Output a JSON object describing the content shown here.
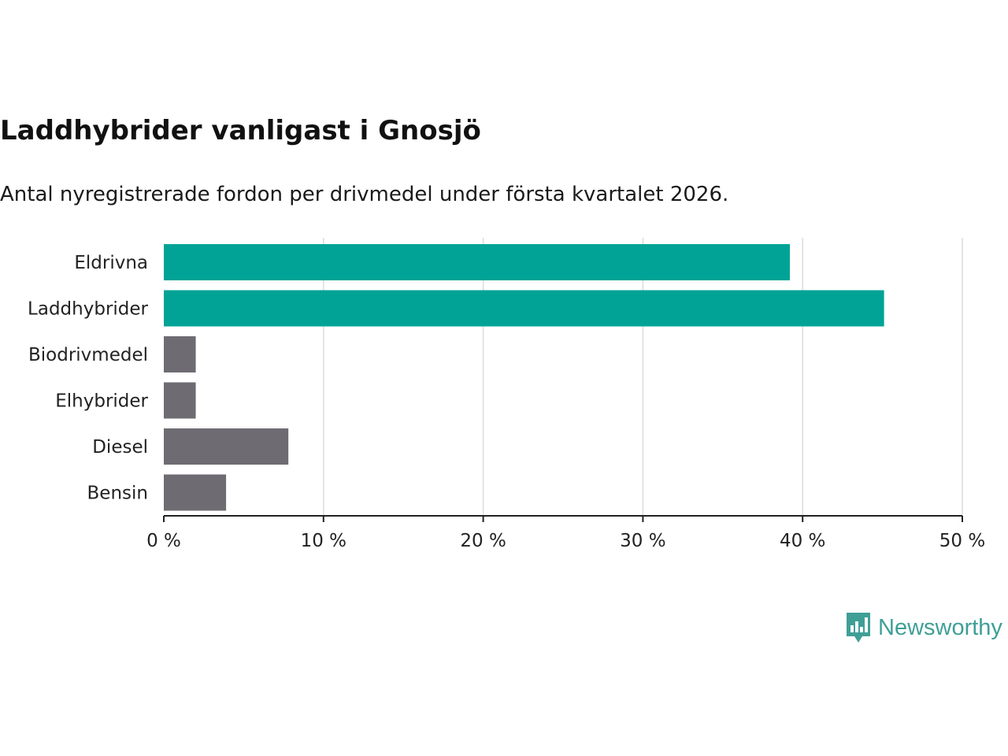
{
  "title": "Laddhybrider vanligast i Gnosjö",
  "subtitle": "Antal nyregistrerade fordon per drivmedel under första kvartalet 2026.",
  "brand": {
    "name": "Newsworthy",
    "color": "#3f9f97",
    "icon": "bar-chart-speech-bubble-icon"
  },
  "colors": {
    "highlight": "#00a396",
    "default": "#6e6c72",
    "grid": "#dcdcdc",
    "axis": "#222222"
  },
  "chart_data": {
    "type": "bar",
    "orientation": "horizontal",
    "title": "Laddhybrider vanligast i Gnosjö",
    "subtitle": "Antal nyregistrerade fordon per drivmedel under första kvartalet 2026.",
    "xlabel": "",
    "ylabel": "",
    "xlim": [
      0,
      50
    ],
    "x_ticks": [
      0,
      10,
      20,
      30,
      40,
      50
    ],
    "x_tick_labels": [
      "0 %",
      "10 %",
      "20 %",
      "30 %",
      "40 %",
      "50 %"
    ],
    "grid": true,
    "categories": [
      "Eldrivna",
      "Laddhybrider",
      "Biodrivmedel",
      "Elhybrider",
      "Diesel",
      "Bensin"
    ],
    "values": [
      39.2,
      45.1,
      2.0,
      2.0,
      7.8,
      3.9
    ],
    "highlight": [
      true,
      true,
      false,
      false,
      false,
      false
    ]
  }
}
